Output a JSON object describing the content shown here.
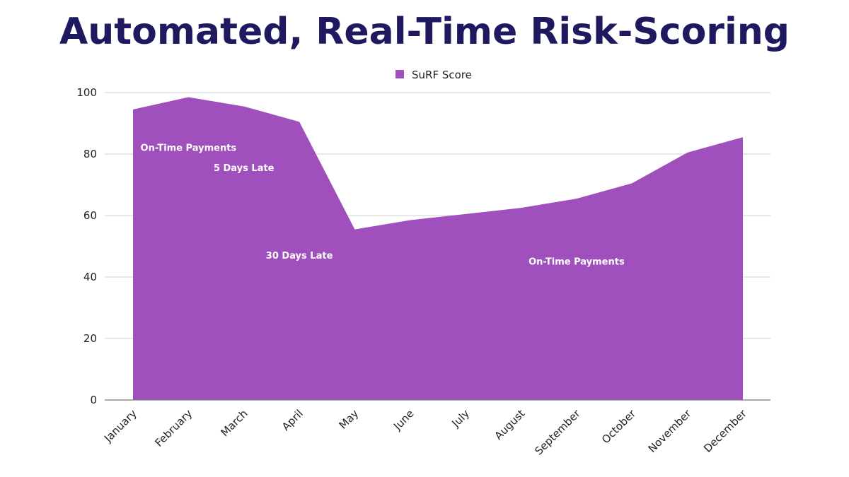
{
  "chart_data": {
    "type": "area",
    "title": "Automated, Real-Time Risk-Scoring",
    "categories": [
      "January",
      "February",
      "March",
      "April",
      "May",
      "June",
      "July",
      "August",
      "September",
      "October",
      "November",
      "December"
    ],
    "series": [
      {
        "name": "SuRF Score",
        "values": [
          94.5,
          98.5,
          95.5,
          90.5,
          55.5,
          58.5,
          60.5,
          62.5,
          65.5,
          70.5,
          80.5,
          85.5
        ]
      }
    ],
    "ylim": [
      0,
      100
    ],
    "yticks": [
      "0",
      "20",
      "40",
      "60",
      "80",
      "100"
    ],
    "grid": true,
    "legend": "top-center",
    "colors": {
      "area": "#a050bd",
      "title": "#1f1a5f"
    },
    "annotations": [
      {
        "text": "On-Time Payments",
        "x": "February",
        "y": 81
      },
      {
        "text": "5 Days Late",
        "x": "March",
        "y": 74.5
      },
      {
        "text": "30 Days Late",
        "x": "April",
        "y": 46
      },
      {
        "text": "On-Time Payments",
        "x": "September",
        "y": 44
      }
    ]
  }
}
